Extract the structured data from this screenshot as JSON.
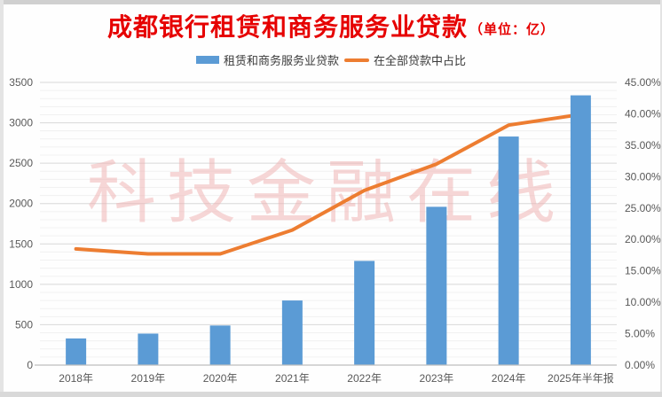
{
  "page": {
    "title": "成都银行租赁和商务服务业贷款",
    "title_unit": "（单位：亿）",
    "watermark": "科技金融在线"
  },
  "colors": {
    "bar_blue": "#5b9bd5",
    "line_orange": "#ed7d31",
    "title_red": "#e60000",
    "watermark_pink": "#eeb4b4",
    "axis_text_grey": "#595959",
    "grid_major": "#d8d8d8",
    "grid_minor": "#f1f1f1",
    "axis_line": "#bfbfbf"
  },
  "chart_data": {
    "type": "bar+line combo",
    "title": "成都银行租赁和商务服务业贷款（单位：亿）",
    "categories": [
      "2018年",
      "2019年",
      "2020年",
      "2021年",
      "2022年",
      "2023年",
      "2024年",
      "2025年半年报"
    ],
    "series": [
      {
        "name": "租赁和商务服务业贷款",
        "type": "bar",
        "axis": "left",
        "unit": "亿",
        "values": [
          330,
          390,
          490,
          800,
          1290,
          1960,
          2830,
          3340
        ]
      },
      {
        "name": "在全部贷款中占比",
        "type": "line",
        "axis": "right",
        "unit": "%",
        "values_percent": [
          18.5,
          17.7,
          17.7,
          21.5,
          27.8,
          32.0,
          38.2,
          39.9
        ]
      }
    ],
    "left_axis": {
      "min": 0,
      "max": 3500,
      "step": 500,
      "minor_step": 100,
      "ticks": [
        "0",
        "500",
        "1000",
        "1500",
        "2000",
        "2500",
        "3000",
        "3500"
      ]
    },
    "right_axis": {
      "min": 0,
      "max": 45,
      "step": 5,
      "ticks": [
        "0.00%",
        "5.00%",
        "10.00%",
        "15.00%",
        "20.00%",
        "25.00%",
        "30.00%",
        "35.00%",
        "40.00%",
        "45.00%"
      ]
    },
    "grid": "horizontal major + faint minor gridlines",
    "legend_position": "top",
    "watermark": "科技金融在线",
    "notes": "orange line drawn behind bars; line ends hidden behind last bar"
  }
}
